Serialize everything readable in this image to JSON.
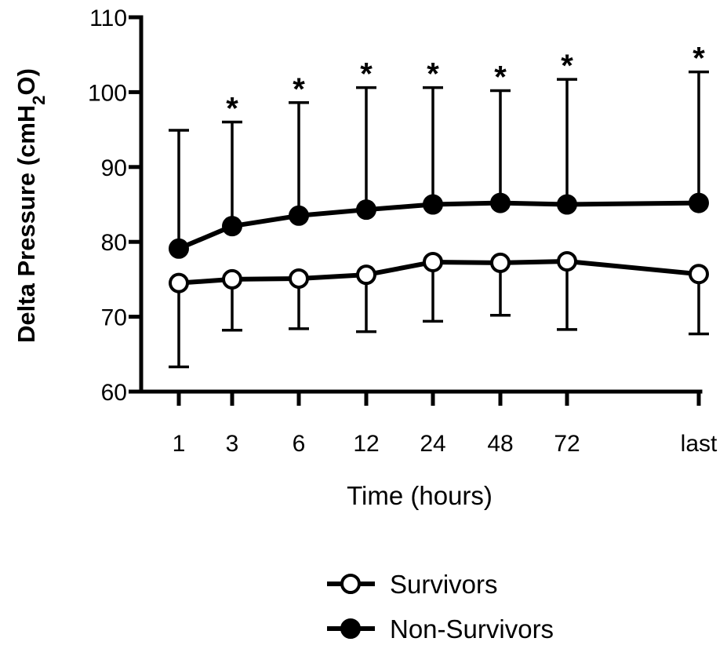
{
  "chart_data": {
    "type": "line",
    "title": "",
    "xlabel": "Time (hours)",
    "ylabel_parts": [
      "Delta Pressure (cmH",
      "2",
      "O)"
    ],
    "categories": [
      "1",
      "3",
      "6",
      "12",
      "24",
      "48",
      "72",
      "last"
    ],
    "ylim": [
      60,
      110
    ],
    "yticks": [
      60,
      70,
      80,
      90,
      100,
      110
    ],
    "error_direction": "survivors-down, non-survivors-up",
    "series": [
      {
        "name": "Survivors",
        "marker": "open-circle",
        "values": [
          74.5,
          75.0,
          75.1,
          75.6,
          77.3,
          77.2,
          77.4,
          75.7
        ],
        "error_low": [
          63.3,
          68.2,
          68.4,
          68.0,
          69.4,
          70.2,
          68.3,
          67.7
        ]
      },
      {
        "name": "Non-Survivors",
        "marker": "filled-circle",
        "values": [
          79.1,
          82.1,
          83.5,
          84.3,
          85.0,
          85.2,
          85.0,
          85.2
        ],
        "error_high": [
          94.9,
          96.0,
          98.6,
          100.6,
          100.6,
          100.2,
          101.7,
          102.7
        ]
      }
    ],
    "annotations": [
      {
        "category": "3",
        "text": "*"
      },
      {
        "category": "6",
        "text": "*"
      },
      {
        "category": "12",
        "text": "*"
      },
      {
        "category": "24",
        "text": "*"
      },
      {
        "category": "48",
        "text": "*"
      },
      {
        "category": "72",
        "text": "*"
      },
      {
        "category": "last",
        "text": "*"
      }
    ],
    "legend_position": "bottom-center",
    "grid": false
  }
}
